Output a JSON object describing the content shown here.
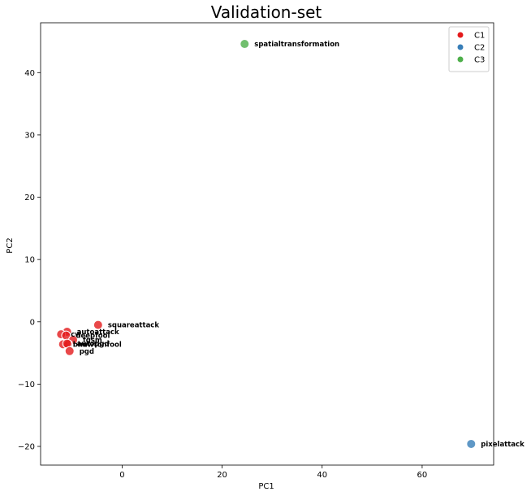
{
  "chart_data": {
    "type": "scatter",
    "title": "Validation-set",
    "xlabel": "PC1",
    "ylabel": "PC2",
    "xlim": [
      -16.3,
      74.3
    ],
    "ylim": [
      -23,
      48
    ],
    "xticks": [
      0,
      20,
      40,
      60
    ],
    "yticks": [
      -20,
      -10,
      0,
      10,
      20,
      30,
      40
    ],
    "grid": false,
    "legend_position": "top-right",
    "series": [
      {
        "name": "C1",
        "color": "#e41a1c",
        "points": [
          {
            "x": -4.8,
            "y": -0.5,
            "label": "squareattack"
          },
          {
            "x": -11.0,
            "y": -1.6,
            "label": "autoattack"
          },
          {
            "x": -12.2,
            "y": -2.0,
            "label": "cw"
          },
          {
            "x": -11.2,
            "y": -2.2,
            "label": "deepfool"
          },
          {
            "x": -9.8,
            "y": -2.9,
            "label": "fgsm"
          },
          {
            "x": -11.8,
            "y": -3.6,
            "label": "bim"
          },
          {
            "x": -10.8,
            "y": -3.6,
            "label": "newtonfool"
          },
          {
            "x": -11.0,
            "y": -3.5,
            "label": "autopgd"
          },
          {
            "x": -10.5,
            "y": -4.7,
            "label": "pgd"
          }
        ]
      },
      {
        "name": "C2",
        "color": "#377eb8",
        "points": [
          {
            "x": 69.8,
            "y": -19.6,
            "label": "pixelattack"
          }
        ]
      },
      {
        "name": "C3",
        "color": "#4daf4a",
        "points": [
          {
            "x": 24.5,
            "y": 44.6,
            "label": "spatialtransformation"
          }
        ]
      }
    ]
  }
}
